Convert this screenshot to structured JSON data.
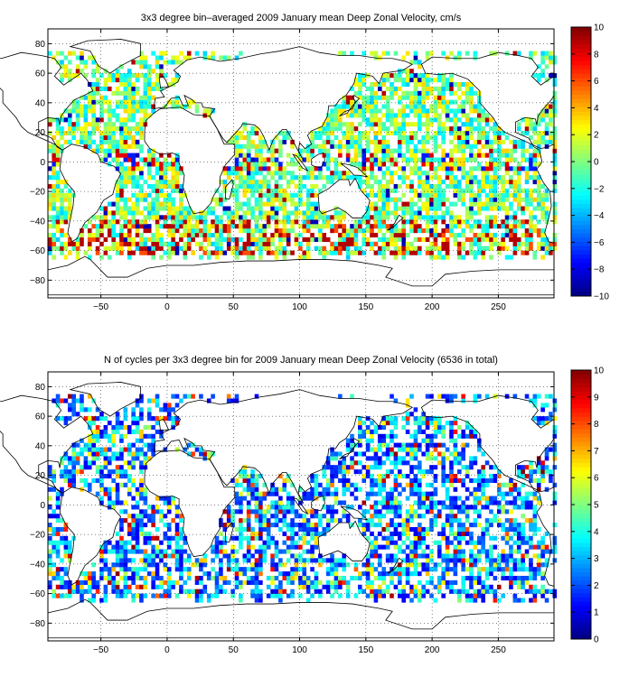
{
  "panels": [
    {
      "title": "3x3 degree bin–averaged 2009 January mean Deep Zonal Velocity, cm/s",
      "colorbar": {
        "min": -10,
        "max": 10,
        "ticks": [
          "10",
          "8",
          "6",
          "4",
          "2",
          "0",
          "−2",
          "−4",
          "−6",
          "−8",
          "−10"
        ]
      },
      "xticks": [
        "−50",
        "0",
        "50",
        "100",
        "150",
        "200",
        "250"
      ],
      "yticks": [
        "80",
        "60",
        "40",
        "20",
        "0",
        "−20",
        "−40",
        "−60",
        "−80"
      ]
    },
    {
      "title": "N of cycles per 3x3 degree bin for 2009 January mean Deep Zonal Velocity (6536 in total)",
      "colorbar": {
        "min": 0,
        "max": 10,
        "ticks": [
          "10",
          "9",
          "8",
          "7",
          "6",
          "5",
          "4",
          "3",
          "2",
          "1",
          "0"
        ]
      },
      "xticks": [
        "−50",
        "0",
        "50",
        "100",
        "150",
        "200",
        "250"
      ],
      "yticks": [
        "80",
        "60",
        "40",
        "20",
        "0",
        "−20",
        "−40",
        "−60",
        "−80"
      ]
    }
  ],
  "chart_data": [
    {
      "type": "heatmap",
      "title": "3x3 degree bin–averaged 2009 January mean Deep Zonal Velocity, cm/s",
      "xlim": [
        -90,
        292
      ],
      "ylim": [
        -92,
        90
      ],
      "xticks": [
        -50,
        0,
        50,
        100,
        150,
        200,
        250
      ],
      "yticks": [
        80,
        60,
        40,
        20,
        0,
        -20,
        -40,
        -60,
        -80
      ],
      "bin_size_deg": 3,
      "colorbar_range": [
        -10,
        10
      ],
      "colormap": "jet",
      "grid": true
    },
    {
      "type": "heatmap",
      "title": "N of cycles per 3x3 degree bin for 2009 January mean Deep Zonal Velocity (6536 in total)",
      "xlim": [
        -90,
        292
      ],
      "ylim": [
        -92,
        90
      ],
      "xticks": [
        -50,
        0,
        50,
        100,
        150,
        200,
        250
      ],
      "yticks": [
        80,
        60,
        40,
        20,
        0,
        -20,
        -40,
        -60,
        -80
      ],
      "bin_size_deg": 3,
      "colorbar_range": [
        0,
        10
      ],
      "total_cycles": 6536,
      "colormap": "jet",
      "grid": true
    }
  ]
}
